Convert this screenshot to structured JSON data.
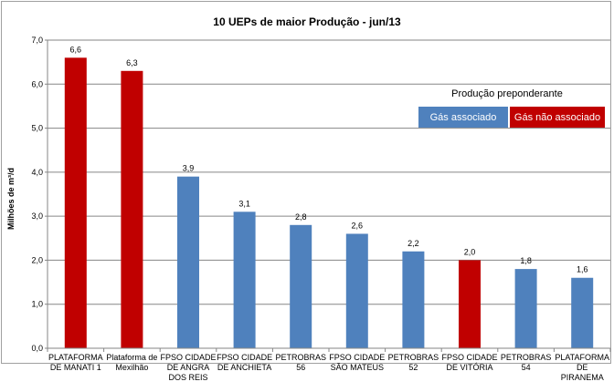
{
  "chart_data": {
    "type": "bar",
    "title": "10 UEPs de maior Produção - jun/13",
    "ylabel": "Milhões de m³/d",
    "xlabel": "",
    "ylim": [
      0,
      7
    ],
    "yticks": [
      "0,0",
      "1,0",
      "2,0",
      "3,0",
      "4,0",
      "5,0",
      "6,0",
      "7,0"
    ],
    "grid": true,
    "categories": [
      [
        "PLATAFORMA",
        "DE MANATI 1"
      ],
      [
        "Plataforma de",
        "Mexilhão"
      ],
      [
        "FPSO CIDADE",
        "DE ANGRA",
        "DOS REIS"
      ],
      [
        "FPSO CIDADE",
        "DE ANCHIETA"
      ],
      [
        "PETROBRAS",
        "56"
      ],
      [
        "FPSO CIDADE",
        "SÃO MATEUS"
      ],
      [
        "PETROBRAS",
        "52"
      ],
      [
        "FPSO CIDADE",
        "DE VITÓRIA"
      ],
      [
        "PETROBRAS",
        "54"
      ],
      [
        "PLATAFORMA",
        "DE",
        "PIRANEMA"
      ]
    ],
    "values": [
      6.6,
      6.3,
      3.9,
      3.1,
      2.8,
      2.6,
      2.2,
      2.0,
      1.8,
      1.6
    ],
    "labels": [
      "6,6",
      "6,3",
      "3,9",
      "3,1",
      "2,8",
      "2,6",
      "2,2",
      "2,0",
      "1,8",
      "1,6"
    ],
    "bar_types": [
      "nao_associado",
      "nao_associado",
      "associado",
      "associado",
      "associado",
      "associado",
      "associado",
      "nao_associado",
      "associado",
      "associado"
    ],
    "legend": {
      "title": "Produção preponderante",
      "position": "right",
      "items": [
        {
          "key": "associado",
          "label": "Gás associado",
          "color": "#4f81bd"
        },
        {
          "key": "nao_associado",
          "label": "Gás não associado",
          "color": "#c00000"
        }
      ]
    }
  }
}
